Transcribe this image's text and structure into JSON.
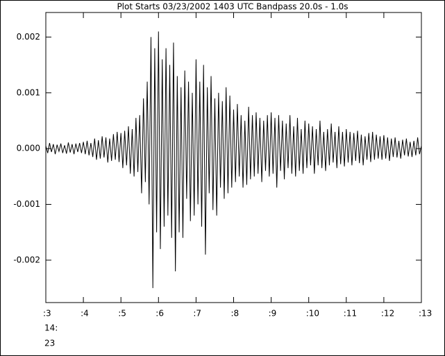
{
  "chart_data": {
    "type": "line",
    "title": "Plot Starts 03/23/2002 1403 UTC Bandpass 20.0s -  1.0s",
    "x_label_sub": [
      "14:",
      "23"
    ],
    "color": "#000000",
    "xlim": [
      3,
      13
    ],
    "ylim": [
      -0.00276,
      0.00244
    ],
    "xticks": [
      {
        "value": 3,
        "label": ":3"
      },
      {
        "value": 4,
        "label": ":4"
      },
      {
        "value": 5,
        "label": ":5"
      },
      {
        "value": 6,
        "label": ":6"
      },
      {
        "value": 7,
        "label": ":7"
      },
      {
        "value": 8,
        "label": ":8"
      },
      {
        "value": 9,
        "label": ":9"
      },
      {
        "value": 10,
        "label": ":10"
      },
      {
        "value": 11,
        "label": ":11"
      },
      {
        "value": 12,
        "label": ":12"
      },
      {
        "value": 13,
        "label": ":13"
      }
    ],
    "yticks": [
      0.002,
      0.001,
      {
        "value": 0,
        "label": "0.000"
      },
      -0.001,
      -0.002
    ],
    "x": [
      3,
      3.05,
      3.1,
      3.15,
      3.2,
      3.25,
      3.3,
      3.35,
      3.4,
      3.45,
      3.5,
      3.55,
      3.6,
      3.65,
      3.7,
      3.75,
      3.8,
      3.85,
      3.9,
      3.95,
      4,
      4.05,
      4.1,
      4.15,
      4.2,
      4.25,
      4.3,
      4.35,
      4.4,
      4.45,
      4.5,
      4.55,
      4.6,
      4.65,
      4.7,
      4.75,
      4.8,
      4.85,
      4.9,
      4.95,
      5,
      5.05,
      5.1,
      5.15,
      5.2,
      5.25,
      5.3,
      5.35,
      5.4,
      5.45,
      5.5,
      5.55,
      5.6,
      5.65,
      5.7,
      5.75,
      5.8,
      5.85,
      5.9,
      5.95,
      6,
      6.05,
      6.1,
      6.15,
      6.2,
      6.25,
      6.3,
      6.35,
      6.4,
      6.45,
      6.5,
      6.55,
      6.6,
      6.65,
      6.7,
      6.75,
      6.8,
      6.85,
      6.9,
      6.95,
      7,
      7.05,
      7.1,
      7.15,
      7.2,
      7.25,
      7.3,
      7.35,
      7.4,
      7.45,
      7.5,
      7.55,
      7.6,
      7.65,
      7.7,
      7.75,
      7.8,
      7.85,
      7.9,
      7.95,
      8,
      8.05,
      8.1,
      8.15,
      8.2,
      8.25,
      8.3,
      8.35,
      8.4,
      8.45,
      8.5,
      8.55,
      8.6,
      8.65,
      8.7,
      8.75,
      8.8,
      8.85,
      8.9,
      8.95,
      9,
      9.05,
      9.1,
      9.15,
      9.2,
      9.25,
      9.3,
      9.35,
      9.4,
      9.45,
      9.5,
      9.55,
      9.6,
      9.65,
      9.7,
      9.75,
      9.8,
      9.85,
      9.9,
      9.95,
      10,
      10.05,
      10.1,
      10.15,
      10.2,
      10.25,
      10.3,
      10.35,
      10.4,
      10.45,
      10.5,
      10.55,
      10.6,
      10.65,
      10.7,
      10.75,
      10.8,
      10.85,
      10.9,
      10.95,
      11,
      11.05,
      11.1,
      11.15,
      11.2,
      11.25,
      11.3,
      11.35,
      11.4,
      11.45,
      11.5,
      11.55,
      11.6,
      11.65,
      11.7,
      11.75,
      11.8,
      11.85,
      11.9,
      11.95,
      12,
      12.05,
      12.1,
      12.15,
      12.2,
      12.25,
      12.3,
      12.35,
      12.4,
      12.45,
      12.5,
      12.55,
      12.6,
      12.65,
      12.7,
      12.75,
      12.8,
      12.85,
      12.9,
      12.95,
      13
    ],
    "values": [
      5e-05,
      -8e-05,
      0.0001,
      -6e-05,
      8e-05,
      -0.0001,
      7e-05,
      -5e-05,
      9e-05,
      -8e-05,
      6e-05,
      -9e-05,
      0.00011,
      -7e-05,
      8e-05,
      -0.0001,
      9e-05,
      -6e-05,
      0.0001,
      -8e-05,
      0.00012,
      -0.0001,
      0.00014,
      -0.00012,
      0.0001,
      -0.00015,
      0.00018,
      -0.0002,
      0.00015,
      -0.00018,
      0.00022,
      -0.00016,
      0.0002,
      -0.00025,
      0.00018,
      -0.00022,
      0.00026,
      -0.0002,
      0.0003,
      -0.00024,
      0.00028,
      -0.00035,
      0.00032,
      -0.0003,
      0.0004,
      -0.00045,
      0.00035,
      -0.0005,
      0.00055,
      -0.00042,
      0.0006,
      -0.0008,
      0.0009,
      -0.0006,
      0.0012,
      -0.001,
      0.002,
      -0.0025,
      0.0018,
      -0.0015,
      0.0021,
      -0.0018,
      0.0016,
      -0.0014,
      0.0018,
      -0.0012,
      0.0015,
      -0.0016,
      0.0019,
      -0.0022,
      0.0013,
      -0.0015,
      0.0011,
      -0.0016,
      0.0014,
      -0.0009,
      0.0012,
      -0.0013,
      0.001,
      -0.0012,
      0.0016,
      -0.001,
      0.0012,
      -0.0014,
      0.0015,
      -0.0019,
      0.0011,
      -0.0008,
      0.0013,
      -0.0011,
      0.0009,
      -0.0012,
      0.001,
      -0.0007,
      0.00085,
      -0.0009,
      0.0011,
      -0.0008,
      0.00095,
      -0.0007,
      0.0007,
      -0.0006,
      0.0008,
      -0.0005,
      0.0006,
      -0.0007,
      0.0005,
      -0.00065,
      0.00075,
      -0.00055,
      0.0006,
      -0.0005,
      0.00065,
      -0.00045,
      0.00055,
      -0.0006,
      0.0005,
      -0.0004,
      0.0006,
      -0.0005,
      0.00065,
      -0.00045,
      0.00055,
      -0.0007,
      0.0006,
      -0.0004,
      0.0005,
      -0.00055,
      0.00045,
      -0.00035,
      0.0006,
      -0.00045,
      0.0004,
      -0.0005,
      0.00055,
      -0.0004,
      0.00035,
      -0.00045,
      0.0005,
      -0.00035,
      0.00045,
      -0.0003,
      0.0004,
      -0.00045,
      0.00035,
      -0.0003,
      0.0005,
      -0.00035,
      0.0003,
      -0.0004,
      0.00035,
      -0.0003,
      0.00045,
      -0.00025,
      0.0003,
      -0.00035,
      0.0004,
      -0.00028,
      0.0003,
      -0.00032,
      0.00035,
      -0.00025,
      0.0003,
      -0.0003,
      0.00028,
      -0.00022,
      0.00032,
      -0.00026,
      0.00025,
      -0.0003,
      0.00022,
      -0.0002,
      0.00028,
      -0.00024,
      0.0003,
      -0.0002,
      0.00025,
      -0.00018,
      0.00022,
      -0.0002,
      0.00024,
      -0.00018,
      0.0002,
      -0.00022,
      0.00018,
      -0.00015,
      0.0002,
      -0.00016,
      0.00014,
      -0.00018,
      0.00016,
      -0.00012,
      0.00018,
      -0.00014,
      0.00012,
      -0.00015,
      0.00014,
      -0.00012,
      0.0002,
      -0.0001,
      5e-05
    ]
  }
}
